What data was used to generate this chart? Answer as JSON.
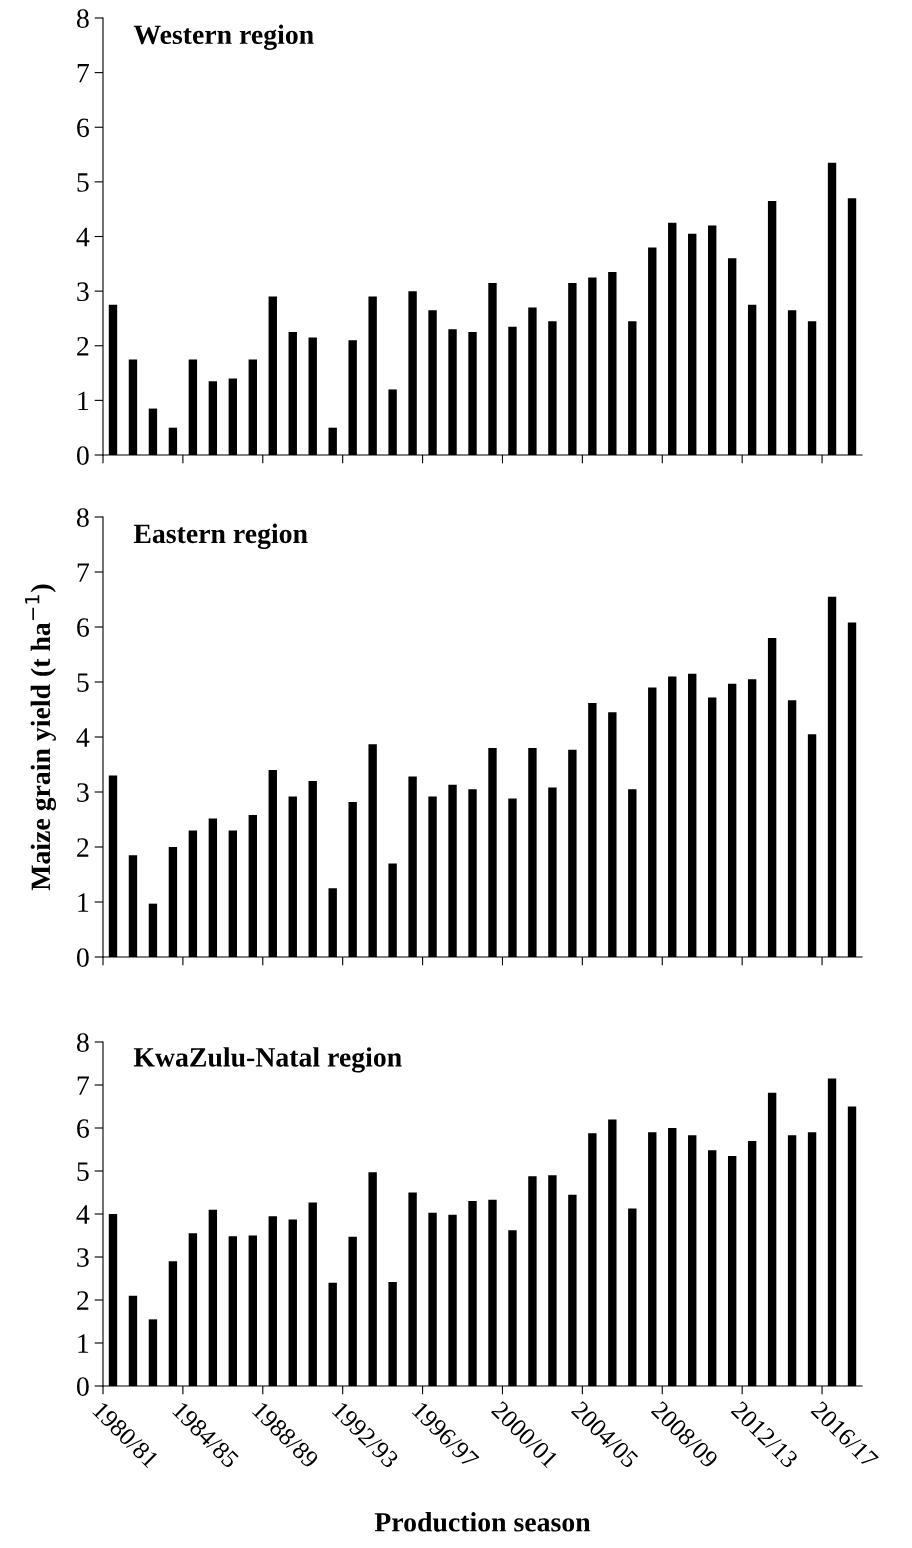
{
  "chart_data": [
    {
      "type": "bar",
      "title": "Western region",
      "categories": [
        "1980/81",
        null,
        null,
        null,
        "1984/85",
        null,
        null,
        null,
        "1988/89",
        null,
        null,
        null,
        "1992/93",
        null,
        null,
        null,
        "1996/97",
        null,
        null,
        null,
        "2000/01",
        null,
        null,
        null,
        "2004/05",
        null,
        null,
        null,
        "2008/09",
        null,
        null,
        null,
        "2012/13",
        null,
        null,
        null,
        "2016/17",
        null
      ],
      "values": [
        2.75,
        1.75,
        0.85,
        0.5,
        1.75,
        1.35,
        1.4,
        1.75,
        2.9,
        2.25,
        2.15,
        0.5,
        2.1,
        2.9,
        1.2,
        3.0,
        2.65,
        2.3,
        2.25,
        3.15,
        2.35,
        2.7,
        2.45,
        3.15,
        3.25,
        3.35,
        2.45,
        3.8,
        4.25,
        4.05,
        4.2,
        3.6,
        2.75,
        4.65,
        2.65,
        2.45,
        5.35,
        4.7
      ],
      "color": "#000000",
      "ylim": [
        0,
        8
      ],
      "yticks": [
        0,
        1,
        2,
        3,
        4,
        5,
        6,
        7,
        8
      ],
      "grid": false,
      "tick_labels": "y"
    },
    {
      "type": "bar",
      "title": "Eastern region",
      "ylabel": "Maize grain yield (t ha$^{−1}$)",
      "categories": [
        "1980/81",
        null,
        null,
        null,
        "1984/85",
        null,
        null,
        null,
        "1988/89",
        null,
        null,
        null,
        "1992/93",
        null,
        null,
        null,
        "1996/97",
        null,
        null,
        null,
        "2000/01",
        null,
        null,
        null,
        "2004/05",
        null,
        null,
        null,
        "2008/09",
        null,
        null,
        null,
        "2012/13",
        null,
        null,
        null,
        "2016/17",
        null
      ],
      "values": [
        3.3,
        1.85,
        0.97,
        2.0,
        2.3,
        2.52,
        2.3,
        2.58,
        3.4,
        2.92,
        3.2,
        1.25,
        2.82,
        3.87,
        1.7,
        3.28,
        2.92,
        3.13,
        3.05,
        3.8,
        2.88,
        3.8,
        3.08,
        3.77,
        4.62,
        4.45,
        3.05,
        4.9,
        5.1,
        5.15,
        4.72,
        4.97,
        5.05,
        5.8,
        4.67,
        4.05,
        6.55,
        6.08
      ],
      "color": "#000000",
      "ylim": [
        0,
        8
      ],
      "yticks": [
        0,
        1,
        2,
        3,
        4,
        5,
        6,
        7,
        8
      ],
      "grid": false,
      "tick_labels": "y"
    },
    {
      "type": "bar",
      "title": "KwaZulu-Natal region",
      "xlabel": "Production season",
      "categories": [
        "1980/81",
        null,
        null,
        null,
        "1984/85",
        null,
        null,
        null,
        "1988/89",
        null,
        null,
        null,
        "1992/93",
        null,
        null,
        null,
        "1996/97",
        null,
        null,
        null,
        "2000/01",
        null,
        null,
        null,
        "2004/05",
        null,
        null,
        null,
        "2008/09",
        null,
        null,
        null,
        "2012/13",
        null,
        null,
        null,
        "2016/17",
        null
      ],
      "values": [
        4.0,
        2.1,
        1.55,
        2.9,
        3.55,
        4.1,
        3.48,
        3.5,
        3.95,
        3.87,
        4.27,
        2.4,
        3.47,
        4.97,
        2.42,
        4.5,
        4.03,
        3.98,
        4.3,
        4.33,
        3.62,
        4.88,
        4.9,
        4.45,
        5.88,
        6.2,
        4.13,
        5.9,
        6.0,
        5.83,
        5.48,
        5.35,
        5.7,
        6.82,
        5.83,
        5.9,
        7.15,
        6.5
      ],
      "color": "#000000",
      "ylim": [
        0,
        8
      ],
      "yticks": [
        0,
        1,
        2,
        3,
        4,
        5,
        6,
        7,
        8
      ],
      "grid": false
    }
  ]
}
